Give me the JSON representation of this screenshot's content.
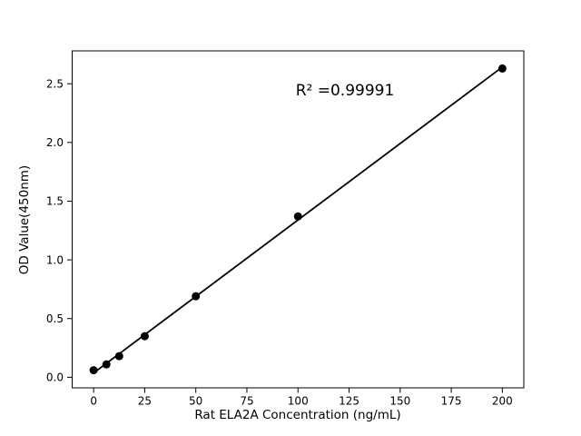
{
  "figure": {
    "background": "#ffffff"
  },
  "chart_data": {
    "type": "scatter",
    "title": "",
    "xlabel": "Rat ELA2A Concentration (ng/mL)",
    "ylabel": "OD Value(450nm)",
    "annotation": "R² =0.99991",
    "x": [
      0,
      6.25,
      12.5,
      25,
      50,
      100,
      200
    ],
    "y": [
      0.06,
      0.11,
      0.18,
      0.35,
      0.69,
      1.37,
      2.63
    ],
    "xticks": [
      0,
      25,
      50,
      75,
      100,
      125,
      150,
      175,
      200
    ],
    "yticks": [
      0.0,
      0.5,
      1.0,
      1.5,
      2.0,
      2.5
    ],
    "xlim": [
      -10.5,
      210.5
    ],
    "ylim": [
      -0.09,
      2.78
    ],
    "grid": false,
    "legend": "none",
    "fit_line": true,
    "marker_color": "#000000",
    "line_color": "#000000",
    "axis_color": "#000000"
  }
}
